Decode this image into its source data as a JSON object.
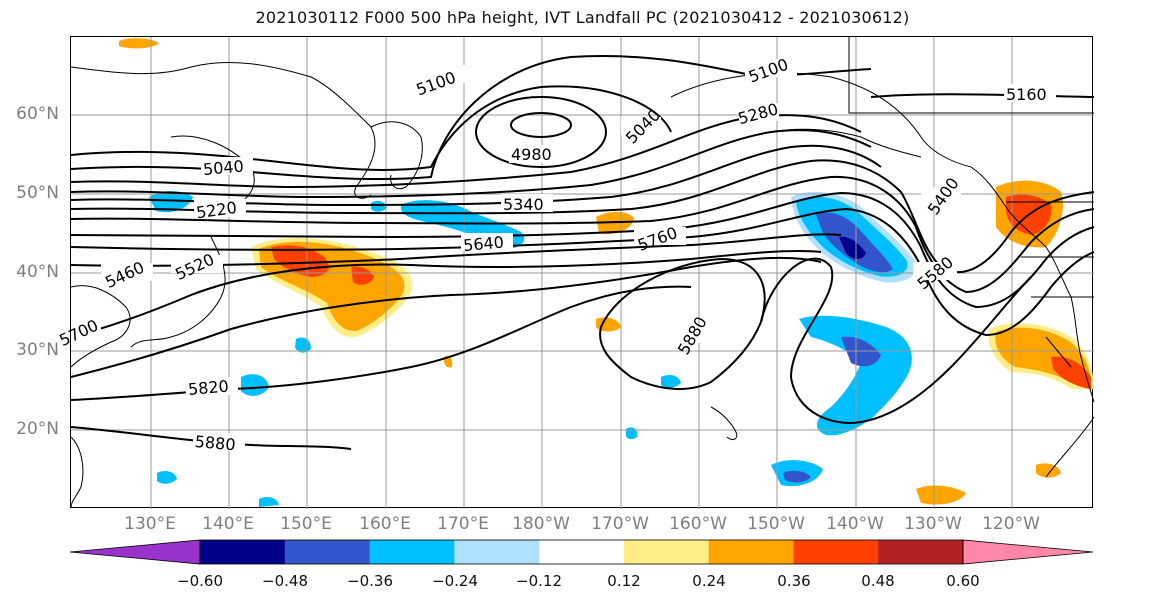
{
  "title": "2021030112 F000 500 hPa height, IVT Landfall PC (2021030412 - 2021030612)",
  "latitude_labels": [
    "60°N",
    "50°N",
    "40°N",
    "30°N",
    "20°N"
  ],
  "longitude_labels": [
    "130°E",
    "140°E",
    "150°E",
    "160°E",
    "170°E",
    "180°W",
    "170°W",
    "160°W",
    "150°W",
    "140°W",
    "130°W",
    "120°W"
  ],
  "colorbar": {
    "tick_labels": [
      "−0.60",
      "−0.48",
      "−0.36",
      "−0.24",
      "−0.12",
      "0.12",
      "0.24",
      "0.36",
      "0.48",
      "0.60"
    ],
    "colors": [
      "#9933cc",
      "#00008b",
      "#3355cc",
      "#00bfff",
      "#b0e0ff",
      "#ffffff",
      "#ffee88",
      "#ffa500",
      "#ff4000",
      "#b22222",
      "#ff88aa"
    ]
  },
  "contour_labels": [
    "5100",
    "5040",
    "4980",
    "5040",
    "5100",
    "5160",
    "5220",
    "5340",
    "5460",
    "5520",
    "5640",
    "5760",
    "5700",
    "5820",
    "5880",
    "5880",
    "5400",
    "5580",
    "5280"
  ],
  "colors": {
    "contour": "#000000",
    "grid": "#999999",
    "coast": "#000000"
  }
}
